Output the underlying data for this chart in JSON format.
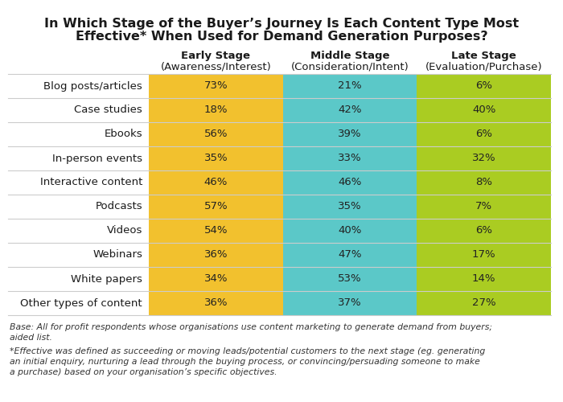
{
  "title_line1": "In Which Stage of the Buyer’s Journey Is Each Content Type Most",
  "title_line2": "Effective* When Used for Demand Generation Purposes?",
  "col_headers_line1": [
    "Early Stage",
    "Middle Stage",
    "Late Stage"
  ],
  "col_headers_line2": [
    "(Awareness/Interest)",
    "(Consideration/Intent)",
    "(Evaluation/Purchase)"
  ],
  "row_labels": [
    "Blog posts/articles",
    "Case studies",
    "Ebooks",
    "In-person events",
    "Interactive content",
    "Podcasts",
    "Videos",
    "Webinars",
    "White papers",
    "Other types of content"
  ],
  "data": [
    [
      "73%",
      "21%",
      "6%"
    ],
    [
      "18%",
      "42%",
      "40%"
    ],
    [
      "56%",
      "39%",
      "6%"
    ],
    [
      "35%",
      "33%",
      "32%"
    ],
    [
      "46%",
      "46%",
      "8%"
    ],
    [
      "57%",
      "35%",
      "7%"
    ],
    [
      "54%",
      "40%",
      "6%"
    ],
    [
      "36%",
      "47%",
      "17%"
    ],
    [
      "34%",
      "53%",
      "14%"
    ],
    [
      "36%",
      "37%",
      "27%"
    ]
  ],
  "col_colors": [
    "#F2C12E",
    "#5BC8C8",
    "#AACC22"
  ],
  "footnote1": "Base: All for profit respondents whose organisations use content marketing to generate demand from buyers;\naided list.",
  "footnote2": "*Effective was defined as succeeding or moving leads/potential customers to the next stage (eg. generating\nan initial enquiry, nurturing a lead through the buying process, or convincing/persuading someone to make\na purchase) based on your organisation’s specific objectives.",
  "background_color": "#FFFFFF",
  "title_fontsize": 11.5,
  "cell_fontsize": 9.5,
  "header_fontsize": 9.5,
  "row_label_fontsize": 9.5,
  "footnote_fontsize": 7.8
}
